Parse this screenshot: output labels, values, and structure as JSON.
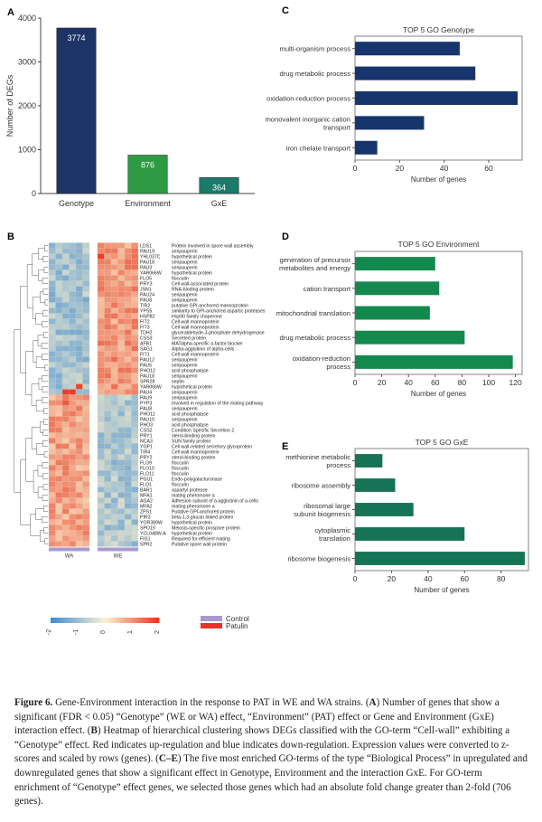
{
  "figure": {
    "caption": {
      "label": "Figure 6.",
      "parts": [
        {
          "t": " Gene-Environment interaction in the response to PAT in WE and WA strains. ("
        },
        {
          "t": "A",
          "b": true
        },
        {
          "t": ") Number of genes that show a significant (FDR < 0.05) “Genotype” (WE or WA) effect, “Environment” (PAT) effect or Gene and Environment (GxE) interaction effect. ("
        },
        {
          "t": "B",
          "b": true
        },
        {
          "t": ") Heatmap of hierarchical clustering shows DEGs classified with the GO-term “Cell-wall” exhibiting a “Genotype” effect. Red indicates up-regulation and blue indicates down-regulation. Expression values were converted to z-scores and scaled by rows (genes). ("
        },
        {
          "t": "C–E",
          "b": true
        },
        {
          "t": ") The five most enriched GO-terms of the type “Biological Process” in upregulated and downregulated genes that show a significant effect in Genotype, Environment and the interaction GxE. For GO-term enrichment of “Genotype” effect genes, we selected those genes which had an absolute fold change greater than 2-fold (706 genes)."
        }
      ]
    }
  },
  "panel_letters": {
    "a": "A",
    "b": "B",
    "c": "C",
    "d": "D",
    "e": "E"
  },
  "heatmap": {
    "genes": [
      "LDS1",
      "PAU19",
      "YHL037C",
      "PAU18",
      "PAU3",
      "YAR066W",
      "FLO5",
      "PRY3",
      "JSN1",
      "PAU24",
      "PAU8",
      "TIR2",
      "YPS5",
      "HSP82",
      "FIT2",
      "FIT3",
      "TDH2",
      "CSS3",
      "AFB1",
      "SAG1",
      "FIT1",
      "PAU12",
      "PAU5",
      "PHO12",
      "PAU18",
      "SPR28",
      "YAR066W",
      "PAU4",
      "PAU9",
      "PYP3",
      "PAU8",
      "PHO11",
      "PAU10",
      "PHO3",
      "CSS2",
      "PRY1",
      "NCA3",
      "YGP1",
      "TIR4",
      "PRY2",
      "FLO9",
      "FLO10",
      "FLO11",
      "PGU1",
      "FLO1",
      "BAR1",
      "MFA1",
      "AGA2",
      "MFA2",
      "ZPS1",
      "PIR3",
      "YOR389W",
      "SPO19",
      "YCL048W-A",
      "FIG1",
      "SPR2"
    ],
    "descriptions": [
      "Protein involved in spore wall assembly",
      "seripauperin",
      "hypothetical protein",
      "seripauperin",
      "seripauperin",
      "hypothetical protein",
      "flocculin",
      "Cell wall-associated protein",
      "RNA-binding protein",
      "seripauperin",
      "seripauperin",
      "putative GPI-anchored mannoprotein",
      "similarity to GPI-anchored aspartic proteases",
      "Hsp90 family chaperone",
      "Cell wall mannoprotein",
      "Cell wall mannoprotein",
      "glyceraldehyde-3-phosphate dehydrogenase",
      "Secreted protein",
      "MATalpha-specific a-factor blocker",
      "Alpha-agglutinin of alpha-cells",
      "Cell wall mannoprotein",
      "seripauperin",
      "seripauperin",
      "acid phosphatase",
      "seripauperin",
      "septin",
      "hypothetical protein",
      "seripauperin",
      "seripauperin",
      "Involved in regulation of the mating pathway",
      "seripauperin",
      "acid phosphatase",
      "seripauperin",
      "acid phosphatase",
      "Condition Specific Secretion 2",
      "sterol-binding protein",
      "SUN family protein",
      "Cell wall-related secretory glycoprotein",
      "Cell wall mannoprotein",
      "sterol-binding protein",
      "flocculin",
      "flocculin",
      "flocculin",
      "Endo-polygalacturonase",
      "flocculin",
      "aspartyl protease",
      "mating pheromone a",
      "Adhesion subunit of a-agglutinin of a-cells",
      "mating pheromone a",
      "Putative GPI-anchored protein",
      "beta-1,3-glucan linked protein",
      "hypothetical protein",
      "Meiosis-specific prospore protein",
      "hypothetical protein",
      "Required for efficient mating",
      "Putative spore wall protein"
    ],
    "group_labels": [
      "WA",
      "WE"
    ],
    "scale_ticks": [
      "-2",
      "-1",
      "0",
      "1",
      "2"
    ],
    "legend": {
      "control": "Control",
      "patulin": "Patulin"
    },
    "colors": {
      "control": "#a79ad0",
      "patulin": "#e8312b",
      "low": "#3a8bd6",
      "mid": "#fdf2d0",
      "high": "#e8341f"
    }
  },
  "chart_data": [
    {
      "id": "A",
      "type": "bar",
      "title": "",
      "categories": [
        "Genotype",
        "Environment",
        "GxE"
      ],
      "values": [
        3774,
        876,
        364
      ],
      "data_labels": [
        "3774",
        "876",
        "364"
      ],
      "colors": [
        "#1e3466",
        "#2e9a44",
        "#1b7a6a"
      ],
      "xlabel": "",
      "ylabel": "Number of DEGs",
      "ylim": [
        0,
        4000
      ],
      "yticks": [
        "0",
        "1000",
        "2000",
        "3000",
        "4000"
      ]
    },
    {
      "id": "C",
      "type": "bar",
      "orientation": "horizontal",
      "title": "TOP 5 GO Genotype",
      "categories": [
        "multi-organism process",
        "drug metabolic process",
        "oxidation-reduction process",
        "monovalent inorganic cation transport",
        "iron chelate transport"
      ],
      "values": [
        47,
        54,
        73,
        31,
        10
      ],
      "color": "#17356d",
      "xlabel": "Number of genes",
      "ylabel": "",
      "xlim": [
        0,
        75
      ],
      "xticks": [
        0,
        20,
        40,
        60
      ]
    },
    {
      "id": "D",
      "type": "bar",
      "orientation": "horizontal",
      "title": "TOP 5 GO Environment",
      "categories": [
        "generation of precursor metabolites and energy",
        "cation transport",
        "mitochondrial translation",
        "drug metabolic process",
        "oxidation-reduction process"
      ],
      "values": [
        60,
        63,
        56,
        82,
        118
      ],
      "color": "#14894e",
      "xlabel": "Number of genes",
      "ylabel": "",
      "xlim": [
        0,
        125
      ],
      "xticks": [
        0,
        20,
        40,
        60,
        80,
        100,
        120
      ]
    },
    {
      "id": "E",
      "type": "bar",
      "orientation": "horizontal",
      "title": "TOP 5 GO GxE",
      "categories": [
        "methionine metabolic process",
        "ribosome assembly",
        "ribosomal large subunit biogenesis",
        "cytoplasmic translation",
        "ribosome biogenesis"
      ],
      "values": [
        15,
        22,
        32,
        60,
        93
      ],
      "color": "#167356",
      "xlabel": "Number of genes",
      "ylabel": "",
      "xlim": [
        0,
        95
      ],
      "xticks": [
        0,
        20,
        40,
        60,
        80
      ]
    }
  ]
}
